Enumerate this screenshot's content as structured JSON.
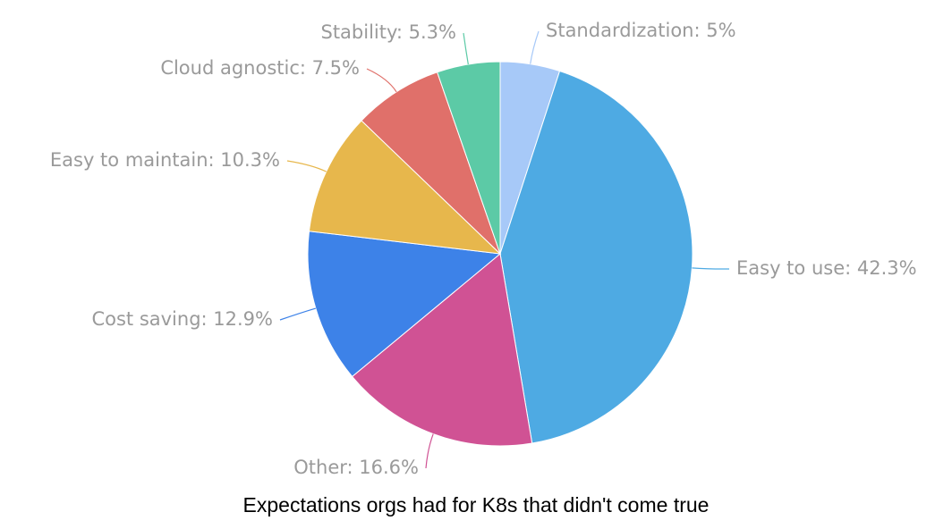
{
  "chart_data": {
    "type": "pie",
    "title": "Expectations orgs had for K8s that didn't come true",
    "start": "top",
    "direction": "clockwise",
    "slices": [
      {
        "label": "Standardization: 5%",
        "category": "Standardization",
        "value": 5,
        "color": "#a7c9f8"
      },
      {
        "label": "Easy to use: 42.3%",
        "category": "Easy to use",
        "value": 42.3,
        "color": "#4eaae3"
      },
      {
        "label": "Other: 16.6%",
        "category": "Other",
        "value": 16.6,
        "color": "#d05294"
      },
      {
        "label": "Cost saving: 12.9%",
        "category": "Cost saving",
        "value": 12.9,
        "color": "#3d82e8"
      },
      {
        "label": "Easy to maintain: 10.3%",
        "category": "Easy to maintain",
        "value": 10.3,
        "color": "#e7b74c"
      },
      {
        "label": "Cloud agnostic: 7.5%",
        "category": "Cloud agnostic",
        "value": 7.5,
        "color": "#e0706a"
      },
      {
        "label": "Stability: 5.3%",
        "category": "Stability",
        "value": 5.3,
        "color": "#5ccaa6"
      }
    ]
  }
}
